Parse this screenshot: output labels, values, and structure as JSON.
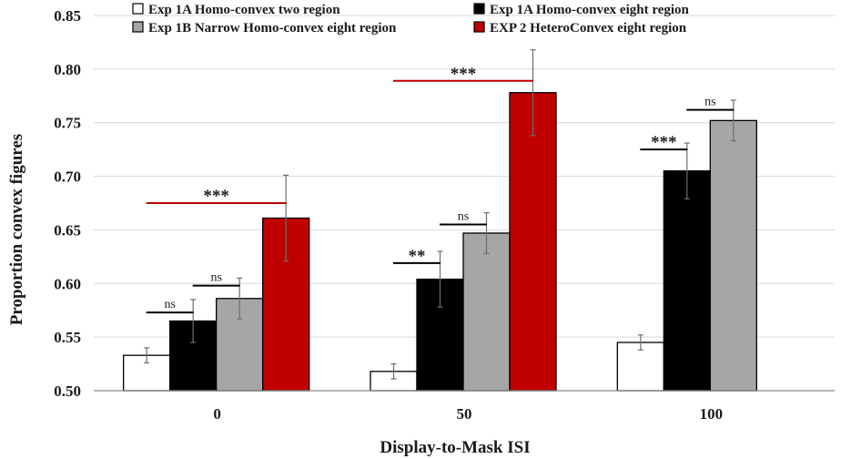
{
  "chart_data": {
    "type": "bar",
    "xlabel": "Display-to-Mask ISI",
    "ylabel": "Proportion convex figures",
    "ylim": [
      0.5,
      0.85
    ],
    "yticks": [
      "0.50",
      "0.55",
      "0.60",
      "0.65",
      "0.70",
      "0.75",
      "0.80",
      "0.85"
    ],
    "categories": [
      "0",
      "50",
      "100"
    ],
    "legend_position": "top",
    "series": [
      {
        "name": "Exp 1A Homo-convex two region",
        "color": "#ffffff",
        "values": [
          0.533,
          0.518,
          0.545
        ],
        "errors": [
          0.007,
          0.007,
          0.007
        ]
      },
      {
        "name": "Exp 1A Homo-convex eight region",
        "color": "#000000",
        "values": [
          0.565,
          0.604,
          0.705
        ],
        "errors": [
          0.02,
          0.026,
          0.026
        ]
      },
      {
        "name": "Exp 1B Narrow Homo-convex eight region",
        "color": "#a6a6a6",
        "values": [
          0.586,
          0.647,
          0.752
        ],
        "errors": [
          0.019,
          0.019,
          0.019
        ]
      },
      {
        "name": "EXP 2 HeteroConvex eight region",
        "color": "#c00000",
        "values": [
          0.661,
          0.778,
          null
        ],
        "errors": [
          0.04,
          0.04,
          null
        ]
      }
    ],
    "annotations": [
      {
        "group": 0,
        "from": 0,
        "to": 1,
        "label": "ns",
        "y": 0.573,
        "color": "#000000"
      },
      {
        "group": 0,
        "from": 1,
        "to": 2,
        "label": "ns",
        "y": 0.598,
        "color": "#000000"
      },
      {
        "group": 0,
        "from": 0,
        "to": 3,
        "label": "***",
        "y": 0.675,
        "color": "#c00000"
      },
      {
        "group": 1,
        "from": 0,
        "to": 1,
        "label": "**",
        "y": 0.619,
        "color": "#000000"
      },
      {
        "group": 1,
        "from": 1,
        "to": 2,
        "label": "ns",
        "y": 0.655,
        "color": "#000000"
      },
      {
        "group": 1,
        "from": 0,
        "to": 3,
        "label": "***",
        "y": 0.789,
        "color": "#c00000"
      },
      {
        "group": 2,
        "from": 0,
        "to": 1,
        "label": "***",
        "y": 0.725,
        "color": "#000000"
      },
      {
        "group": 2,
        "from": 1,
        "to": 2,
        "label": "ns",
        "y": 0.762,
        "color": "#000000"
      }
    ]
  }
}
